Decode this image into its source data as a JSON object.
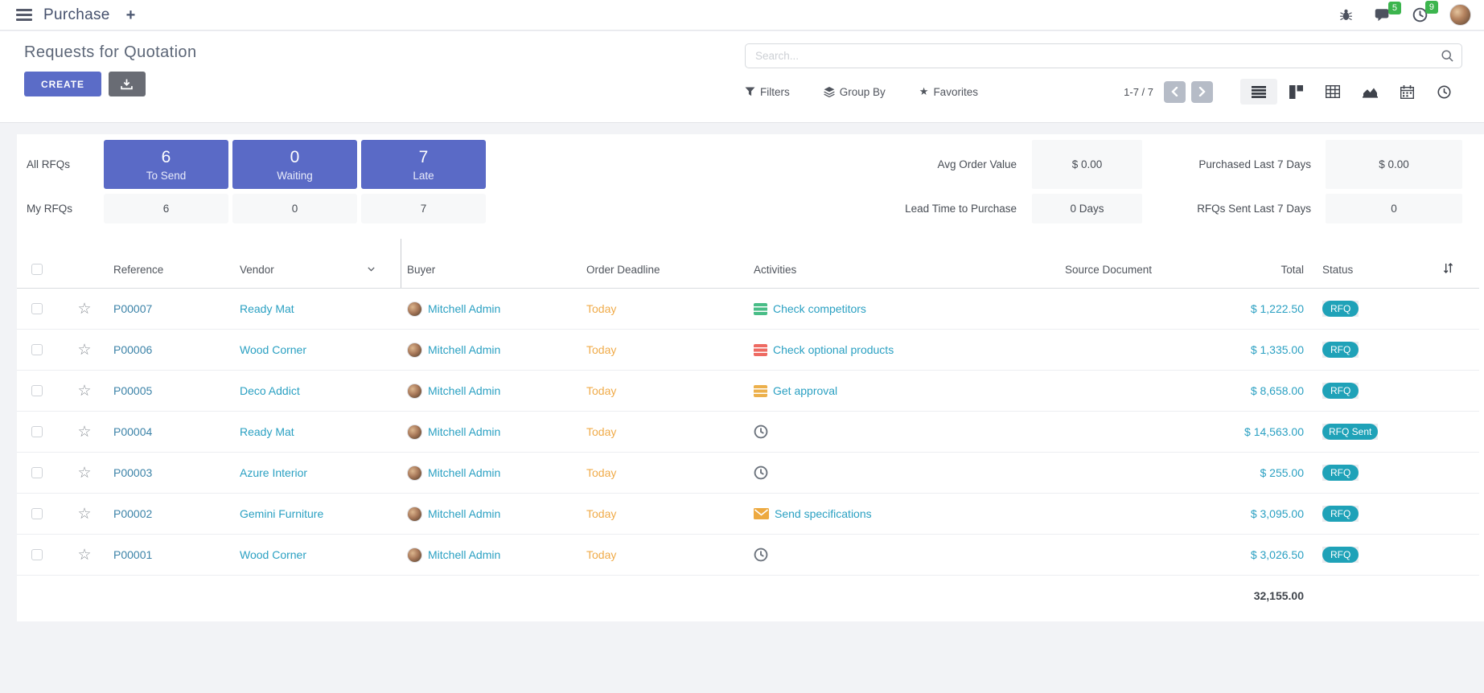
{
  "topbar": {
    "app_name": "Purchase",
    "new_tab_label": "+",
    "messages_badge": "5",
    "activities_badge": "9"
  },
  "control_panel": {
    "title": "Requests for Quotation",
    "create_label": "CREATE",
    "search_placeholder": "Search...",
    "filters_label": "Filters",
    "group_by_label": "Group By",
    "favorites_label": "Favorites",
    "pager": "1-7 / 7"
  },
  "dashboard": {
    "all_rfqs_label": "All RFQs",
    "my_rfqs_label": "My RFQs",
    "stats": [
      {
        "count": "6",
        "label": "To Send",
        "my_count": "6"
      },
      {
        "count": "0",
        "label": "Waiting",
        "my_count": "0"
      },
      {
        "count": "7",
        "label": "Late",
        "my_count": "7"
      }
    ],
    "kpis": [
      {
        "label": "Avg Order Value",
        "value": "$ 0.00"
      },
      {
        "label": "Lead Time to Purchase",
        "value": "0 Days"
      },
      {
        "label": "Purchased Last 7 Days",
        "value": "$ 0.00"
      },
      {
        "label": "RFQs Sent Last 7 Days",
        "value": "0"
      }
    ]
  },
  "table": {
    "columns": [
      "Reference",
      "Vendor",
      "Buyer",
      "Order Deadline",
      "Activities",
      "Source Document",
      "Total",
      "Status"
    ],
    "rows": [
      {
        "reference": "P00007",
        "vendor": "Ready Mat",
        "buyer": "Mitchell Admin",
        "order_deadline": "Today",
        "activity": {
          "icon": "list-green",
          "label": "Check competitors"
        },
        "source_document": "",
        "total": "$ 1,222.50",
        "status": "RFQ"
      },
      {
        "reference": "P00006",
        "vendor": "Wood Corner",
        "buyer": "Mitchell Admin",
        "order_deadline": "Today",
        "activity": {
          "icon": "list-red",
          "label": "Check optional products"
        },
        "source_document": "",
        "total": "$ 1,335.00",
        "status": "RFQ"
      },
      {
        "reference": "P00005",
        "vendor": "Deco Addict",
        "buyer": "Mitchell Admin",
        "order_deadline": "Today",
        "activity": {
          "icon": "list-yellow",
          "label": "Get approval"
        },
        "source_document": "",
        "total": "$ 8,658.00",
        "status": "RFQ"
      },
      {
        "reference": "P00004",
        "vendor": "Ready Mat",
        "buyer": "Mitchell Admin",
        "order_deadline": "Today",
        "activity": {
          "icon": "clock",
          "label": ""
        },
        "source_document": "",
        "total": "$ 14,563.00",
        "status": "RFQ Sent"
      },
      {
        "reference": "P00003",
        "vendor": "Azure Interior",
        "buyer": "Mitchell Admin",
        "order_deadline": "Today",
        "activity": {
          "icon": "clock",
          "label": ""
        },
        "source_document": "",
        "total": "$ 255.00",
        "status": "RFQ"
      },
      {
        "reference": "P00002",
        "vendor": "Gemini Furniture",
        "buyer": "Mitchell Admin",
        "order_deadline": "Today",
        "activity": {
          "icon": "envelope",
          "label": "Send specifications"
        },
        "source_document": "",
        "total": "$ 3,095.00",
        "status": "RFQ"
      },
      {
        "reference": "P00001",
        "vendor": "Wood Corner",
        "buyer": "Mitchell Admin",
        "order_deadline": "Today",
        "activity": {
          "icon": "clock",
          "label": ""
        },
        "source_document": "",
        "total": "$ 3,026.50",
        "status": "RFQ"
      }
    ],
    "footer_total": "32,155.00"
  },
  "colors": {
    "primary": "#5a6ac6",
    "link_teal": "#2aa0c2",
    "link_reference": "#3c83a8",
    "deadline_warning": "#f0ab49",
    "badge_status": "#1fa2b8",
    "badge_notification": "#3cb54e",
    "activity_green": "#49bd87",
    "activity_red": "#ee6a62",
    "activity_yellow": "#ecb04c"
  }
}
